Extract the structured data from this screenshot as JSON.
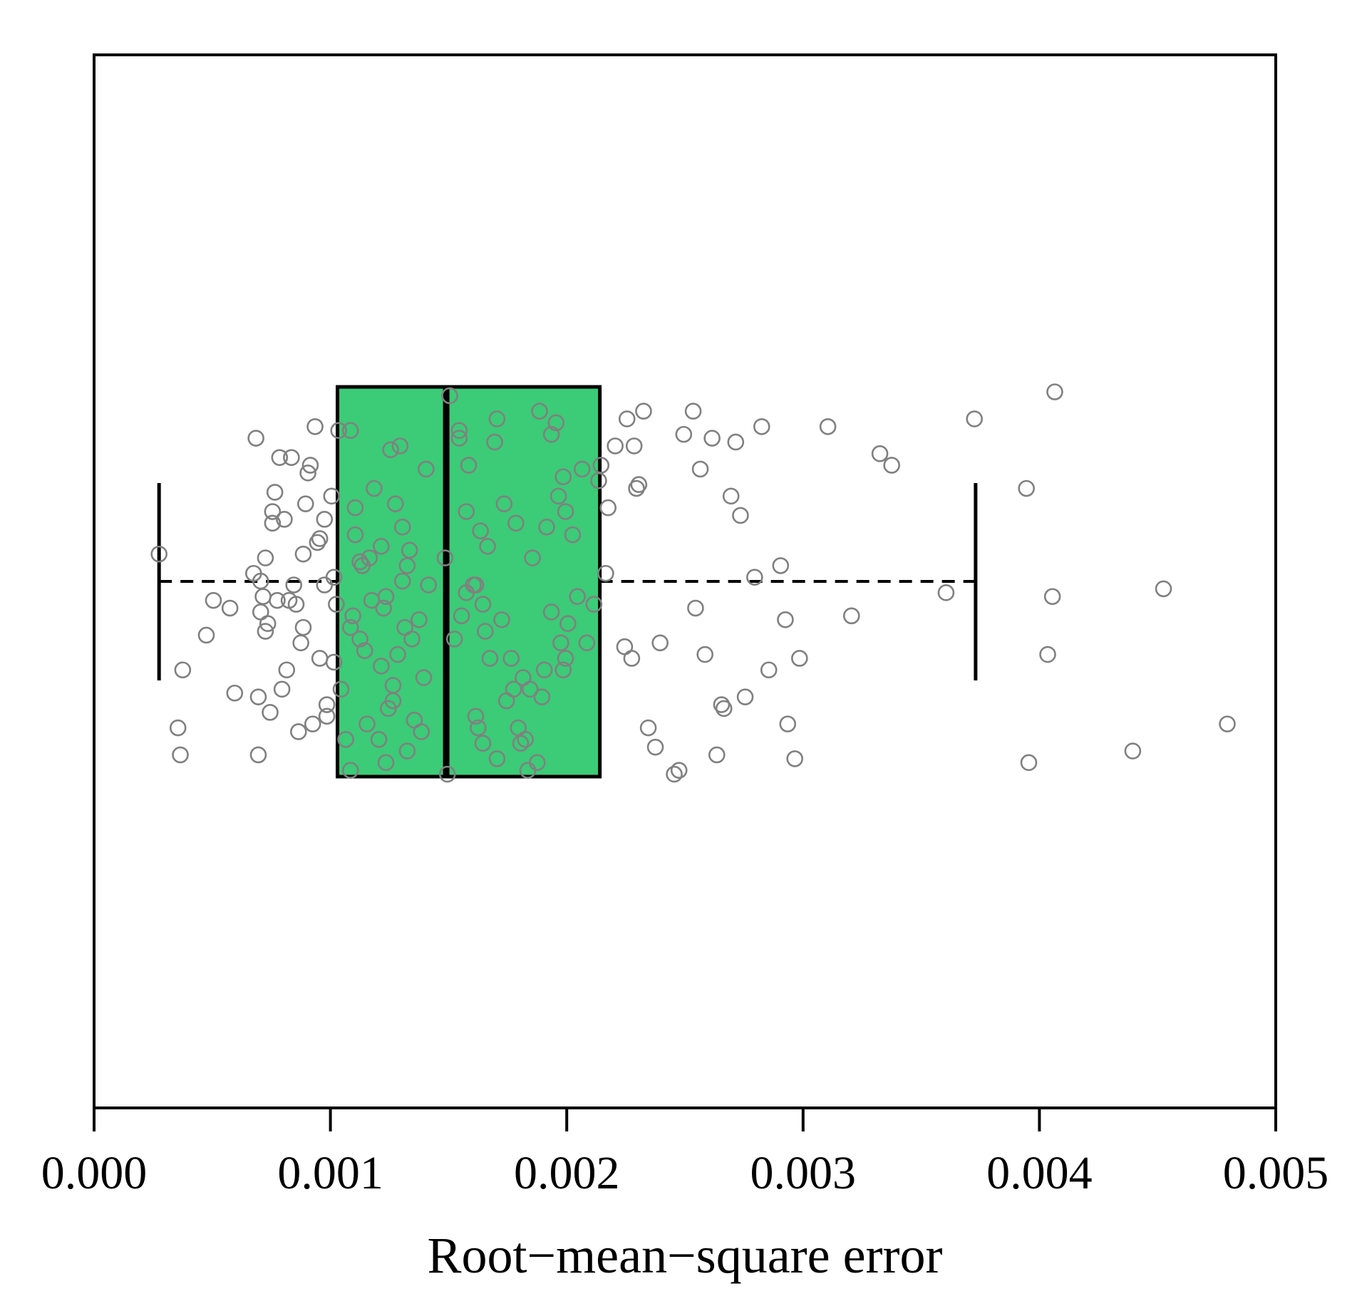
{
  "chart_data": {
    "type": "box",
    "title": "",
    "xlabel": "Root−mean−square error",
    "ylabel": "",
    "xlim": [
      0.0,
      0.005
    ],
    "x_ticks": [
      0.0,
      0.001,
      0.002,
      0.003,
      0.004,
      0.005
    ],
    "x_tick_labels": [
      "0.000",
      "0.001",
      "0.002",
      "0.003",
      "0.004",
      "0.005"
    ],
    "grid": false,
    "orientation": "horizontal",
    "box": {
      "whisker_low": 0.000275,
      "q1": 0.00103,
      "median": 0.00149,
      "q3": 0.00214,
      "whisker_high": 0.00373
    },
    "colors": {
      "box_fill": "#3CCB77",
      "point_stroke": "#808080",
      "frame": "#000000"
    },
    "points": [
      [
        0.000275,
        0.58
      ],
      [
        0.000355,
        0.13
      ],
      [
        0.000365,
        0.06
      ],
      [
        0.000375,
        0.28
      ],
      [
        0.000475,
        0.37
      ],
      [
        0.000505,
        0.46
      ],
      [
        0.000575,
        0.44
      ],
      [
        0.000595,
        0.22
      ],
      [
        0.000675,
        0.53
      ],
      [
        0.000685,
        0.88
      ],
      [
        0.000695,
        0.21
      ],
      [
        0.000705,
        0.43
      ],
      [
        0.000715,
        0.47
      ],
      [
        0.000725,
        0.57
      ],
      [
        0.000755,
        0.69
      ],
      [
        0.000765,
        0.74
      ],
      [
        0.000775,
        0.46
      ],
      [
        0.000785,
        0.83
      ],
      [
        0.000815,
        0.28
      ],
      [
        0.000835,
        0.83
      ],
      [
        0.000845,
        0.5
      ],
      [
        0.000865,
        0.12
      ],
      [
        0.000875,
        0.35
      ],
      [
        0.000885,
        0.58
      ],
      [
        0.000915,
        0.81
      ],
      [
        0.000925,
        0.14
      ],
      [
        0.000945,
        0.61
      ],
      [
        0.000955,
        0.31
      ],
      [
        0.000975,
        0.67
      ],
      [
        0.001005,
        0.73
      ],
      [
        0.000985,
        0.16
      ],
      [
        0.001025,
        0.45
      ],
      [
        0.000695,
        0.06
      ],
      [
        0.000725,
        0.38
      ],
      [
        0.000745,
        0.17
      ],
      [
        0.000755,
        0.66
      ],
      [
        0.000795,
        0.23
      ],
      [
        0.000825,
        0.46
      ],
      [
        0.000855,
        0.45
      ],
      [
        0.000895,
        0.71
      ],
      [
        0.000935,
        0.91
      ],
      [
        0.000955,
        0.62
      ],
      [
        0.000985,
        0.19
      ],
      [
        0.001015,
        0.3
      ],
      [
        0.000705,
        0.51
      ],
      [
        0.000735,
        0.4
      ],
      [
        0.000805,
        0.67
      ],
      [
        0.000885,
        0.39
      ],
      [
        0.000905,
        0.79
      ],
      [
        0.000975,
        0.5
      ],
      [
        0.001015,
        0.52
      ],
      [
        0.001035,
        0.9
      ],
      [
        0.001085,
        0.02
      ],
      [
        0.001045,
        0.23
      ],
      [
        0.001065,
        0.1
      ],
      [
        0.001085,
        0.39
      ],
      [
        0.001105,
        0.7
      ],
      [
        0.001125,
        0.36
      ],
      [
        0.001135,
        0.55
      ],
      [
        0.001155,
        0.14
      ],
      [
        0.001175,
        0.46
      ],
      [
        0.001215,
        0.6
      ],
      [
        0.001225,
        0.44
      ],
      [
        0.001235,
        0.04
      ],
      [
        0.001255,
        0.85
      ],
      [
        0.001265,
        0.2
      ],
      [
        0.001285,
        0.32
      ],
      [
        0.001305,
        0.65
      ],
      [
        0.001315,
        0.39
      ],
      [
        0.001335,
        0.59
      ],
      [
        0.001355,
        0.15
      ],
      [
        0.001375,
        0.41
      ],
      [
        0.001395,
        0.26
      ],
      [
        0.001415,
        0.5
      ],
      [
        0.001185,
        0.75
      ],
      [
        0.001215,
        0.29
      ],
      [
        0.001245,
        0.18
      ],
      [
        0.001275,
        0.71
      ],
      [
        0.001295,
        0.86
      ],
      [
        0.001325,
        0.07
      ],
      [
        0.001345,
        0.36
      ],
      [
        0.001385,
        0.12
      ],
      [
        0.001405,
        0.8
      ],
      [
        0.001165,
        0.57
      ],
      [
        0.001205,
        0.1
      ],
      [
        0.001145,
        0.33
      ],
      [
        0.001095,
        0.42
      ],
      [
        0.001085,
        0.9
      ],
      [
        0.001125,
        0.56
      ],
      [
        0.001105,
        0.63
      ],
      [
        0.001235,
        0.47
      ],
      [
        0.001265,
        0.24
      ],
      [
        0.001305,
        0.51
      ],
      [
        0.001325,
        0.55
      ],
      [
        0.001485,
        0.57
      ],
      [
        0.001505,
        0.99
      ],
      [
        0.001495,
        0.01
      ],
      [
        0.001525,
        0.36
      ],
      [
        0.001545,
        0.88
      ],
      [
        0.001555,
        0.42
      ],
      [
        0.001575,
        0.48
      ],
      [
        0.001585,
        0.81
      ],
      [
        0.001605,
        0.5
      ],
      [
        0.001615,
        0.16
      ],
      [
        0.001625,
        0.13
      ],
      [
        0.001645,
        0.09
      ],
      [
        0.001655,
        0.38
      ],
      [
        0.001675,
        0.31
      ],
      [
        0.001695,
        0.87
      ],
      [
        0.001705,
        0.05
      ],
      [
        0.001725,
        0.41
      ],
      [
        0.001745,
        0.2
      ],
      [
        0.001765,
        0.31
      ],
      [
        0.001785,
        0.66
      ],
      [
        0.001795,
        0.13
      ],
      [
        0.001815,
        0.26
      ],
      [
        0.001835,
        0.02
      ],
      [
        0.001855,
        0.57
      ],
      [
        0.001875,
        0.04
      ],
      [
        0.001895,
        0.21
      ],
      [
        0.001915,
        0.65
      ],
      [
        0.001935,
        0.89
      ],
      [
        0.001955,
        0.92
      ],
      [
        0.001975,
        0.35
      ],
      [
        0.001985,
        0.28
      ],
      [
        0.002005,
        0.4
      ],
      [
        0.002025,
        0.63
      ],
      [
        0.002045,
        0.47
      ],
      [
        0.002065,
        0.8
      ],
      [
        0.002085,
        0.35
      ],
      [
        0.002115,
        0.45
      ],
      [
        0.002135,
        0.77
      ],
      [
        0.002145,
        0.81
      ],
      [
        0.002165,
        0.53
      ],
      [
        0.001995,
        0.31
      ],
      [
        0.001985,
        0.78
      ],
      [
        0.001965,
        0.73
      ],
      [
        0.001935,
        0.43
      ],
      [
        0.001905,
        0.28
      ],
      [
        0.001885,
        0.95
      ],
      [
        0.001845,
        0.23
      ],
      [
        0.001825,
        0.1
      ],
      [
        0.001805,
        0.09
      ],
      [
        0.001775,
        0.23
      ],
      [
        0.001735,
        0.71
      ],
      [
        0.001705,
        0.93
      ],
      [
        0.001665,
        0.6
      ],
      [
        0.001645,
        0.45
      ],
      [
        0.001615,
        0.5
      ],
      [
        0.001575,
        0.69
      ],
      [
        0.001545,
        0.9
      ],
      [
        0.001995,
        0.69
      ],
      [
        0.001635,
        0.64
      ],
      [
        0.002175,
        0.7
      ],
      [
        0.002205,
        0.86
      ],
      [
        0.002245,
        0.34
      ],
      [
        0.002255,
        0.93
      ],
      [
        0.002275,
        0.31
      ],
      [
        0.002285,
        0.86
      ],
      [
        0.002295,
        0.75
      ],
      [
        0.002305,
        0.76
      ],
      [
        0.002325,
        0.95
      ],
      [
        0.002345,
        0.13
      ],
      [
        0.002375,
        0.08
      ],
      [
        0.002395,
        0.35
      ],
      [
        0.002455,
        0.01
      ],
      [
        0.002475,
        0.02
      ],
      [
        0.002495,
        0.89
      ],
      [
        0.002535,
        0.95
      ],
      [
        0.002545,
        0.44
      ],
      [
        0.002565,
        0.8
      ],
      [
        0.002585,
        0.32
      ],
      [
        0.002615,
        0.88
      ],
      [
        0.002635,
        0.06
      ],
      [
        0.002655,
        0.19
      ],
      [
        0.002665,
        0.18
      ],
      [
        0.002695,
        0.73
      ],
      [
        0.002715,
        0.87
      ],
      [
        0.002735,
        0.68
      ],
      [
        0.002755,
        0.21
      ],
      [
        0.002795,
        0.52
      ],
      [
        0.002825,
        0.91
      ],
      [
        0.002855,
        0.28
      ],
      [
        0.002905,
        0.55
      ],
      [
        0.002925,
        0.41
      ],
      [
        0.002935,
        0.14
      ],
      [
        0.002965,
        0.05
      ],
      [
        0.002985,
        0.31
      ],
      [
        0.003105,
        0.91
      ],
      [
        0.003205,
        0.42
      ],
      [
        0.003325,
        0.84
      ],
      [
        0.003375,
        0.81
      ],
      [
        0.003605,
        0.48
      ],
      [
        0.003725,
        0.93
      ],
      [
        0.003955,
        0.04
      ],
      [
        0.003945,
        0.75
      ],
      [
        0.004035,
        0.32
      ],
      [
        0.004055,
        0.47
      ],
      [
        0.004065,
        1.0
      ],
      [
        0.004395,
        0.07
      ],
      [
        0.004525,
        0.49
      ],
      [
        0.004795,
        0.14
      ]
    ]
  },
  "jitter_band": [
    0.0,
    1.0
  ]
}
